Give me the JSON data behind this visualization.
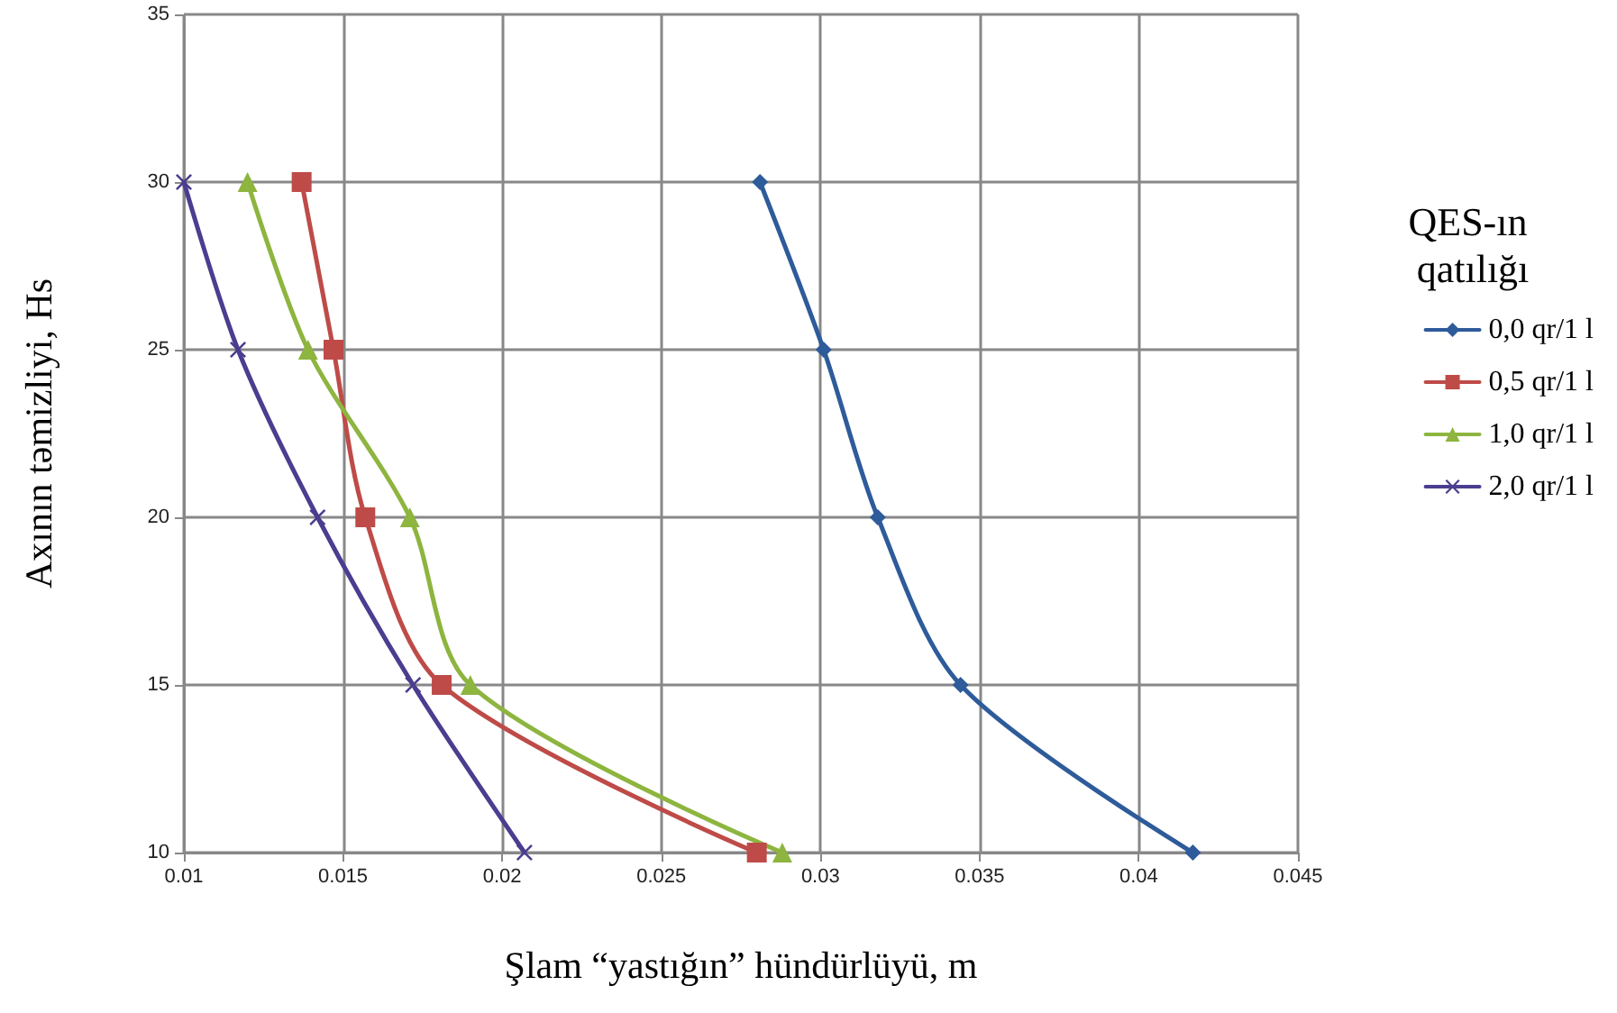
{
  "chart_data": {
    "type": "line",
    "xlabel": "Şlam “yastığın” hündürlüyü, m",
    "ylabel": "Axının təmizliyi, Hs",
    "legend_title": "QES-ın qatılığı",
    "legend": "right",
    "series": [
      {
        "name": "0,0 qr/1 l",
        "color": "#2e5b9a",
        "marker": "diamond",
        "x": [
          0.0281,
          0.0301,
          0.0318,
          0.0344,
          0.0417
        ],
        "values": [
          30,
          25,
          20,
          15,
          10
        ]
      },
      {
        "name": "0,5 qr/1 l",
        "color": "#be4b48",
        "marker": "square",
        "x": [
          0.0137,
          0.0147,
          0.0157,
          0.0181,
          0.028
        ],
        "values": [
          30,
          25,
          20,
          15,
          10
        ]
      },
      {
        "name": "1,0 qr/1 l",
        "color": "#8db53f",
        "marker": "triangle",
        "x": [
          0.012,
          0.0139,
          0.0171,
          0.019,
          0.0288
        ],
        "values": [
          30,
          25,
          20,
          15,
          10
        ]
      },
      {
        "name": "2,0 qr/1 l",
        "color": "#4b3d8f",
        "marker": "cross",
        "x": [
          0.01,
          0.0117,
          0.0142,
          0.0172,
          0.0207
        ],
        "values": [
          30,
          25,
          20,
          15,
          10
        ]
      }
    ],
    "xlim": [
      0.01,
      0.045
    ],
    "xticks": [
      0.01,
      0.015,
      0.02,
      0.025,
      0.03,
      0.035,
      0.04,
      0.045
    ],
    "ylim": [
      10,
      35
    ],
    "yticks": [
      10,
      15,
      20,
      25,
      30,
      35
    ],
    "grid": true
  }
}
